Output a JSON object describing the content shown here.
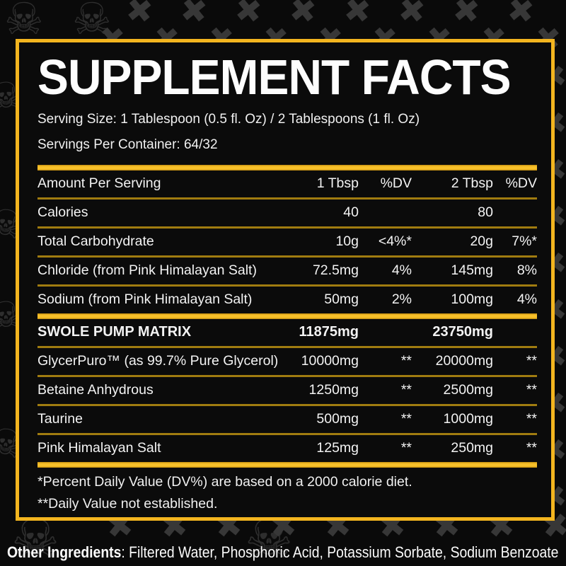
{
  "background": {
    "x_icon": "✖",
    "skull_icon": "☠"
  },
  "colors": {
    "gold": "#f3b51f",
    "divider_gold": "#a07c10",
    "background": "#0a0a0a",
    "text": "#f3f3f3"
  },
  "panel": {
    "title": "SUPPLEMENT FACTS",
    "serving_size": "Serving Size: 1 Tablespoon (0.5 fl. Oz) / 2 Tablespoons (1 fl. Oz)",
    "servings_per_container": "Servings Per Container: 64/32",
    "header": {
      "label": "Amount Per Serving",
      "col1": "1 Tbsp",
      "col2": "%DV",
      "col3": "2 Tbsp",
      "col4": "%DV"
    },
    "rows": [
      {
        "label": "Calories",
        "c1": "40",
        "c2": "",
        "c3": "80",
        "c4": ""
      },
      {
        "label": "Total Carbohydrate",
        "c1": "10g",
        "c2": "<4%*",
        "c3": "20g",
        "c4": "7%*"
      },
      {
        "label": "Chloride (from Pink Himalayan Salt)",
        "c1": "72.5mg",
        "c2": "4%",
        "c3": "145mg",
        "c4": "8%"
      },
      {
        "label": "Sodium (from Pink Himalayan Salt)",
        "c1": "50mg",
        "c2": "2%",
        "c3": "100mg",
        "c4": "4%"
      }
    ],
    "matrix": {
      "header": {
        "label": "SWOLE PUMP MATRIX",
        "c1": "11875mg",
        "c2": "",
        "c3": "23750mg",
        "c4": ""
      },
      "rows": [
        {
          "label": "GlycerPuro™ (as 99.7% Pure Glycerol)",
          "c1": "10000mg",
          "c2": "**",
          "c3": "20000mg",
          "c4": "**"
        },
        {
          "label": "Betaine Anhydrous",
          "c1": "1250mg",
          "c2": "**",
          "c3": "2500mg",
          "c4": "**"
        },
        {
          "label": "Taurine",
          "c1": "500mg",
          "c2": "**",
          "c3": "1000mg",
          "c4": "**"
        },
        {
          "label": "Pink Himalayan Salt",
          "c1": "125mg",
          "c2": "**",
          "c3": "250mg",
          "c4": "**"
        }
      ]
    },
    "footnotes": [
      "*Percent Daily Value (DV%) are based on a 2000 calorie diet.",
      "**Daily Value not established."
    ]
  },
  "other_ingredients": {
    "label": "Other Ingredients",
    "text": ": Filtered Water, Phosphoric Acid, Potassium Sorbate, Sodium Benzoate"
  }
}
